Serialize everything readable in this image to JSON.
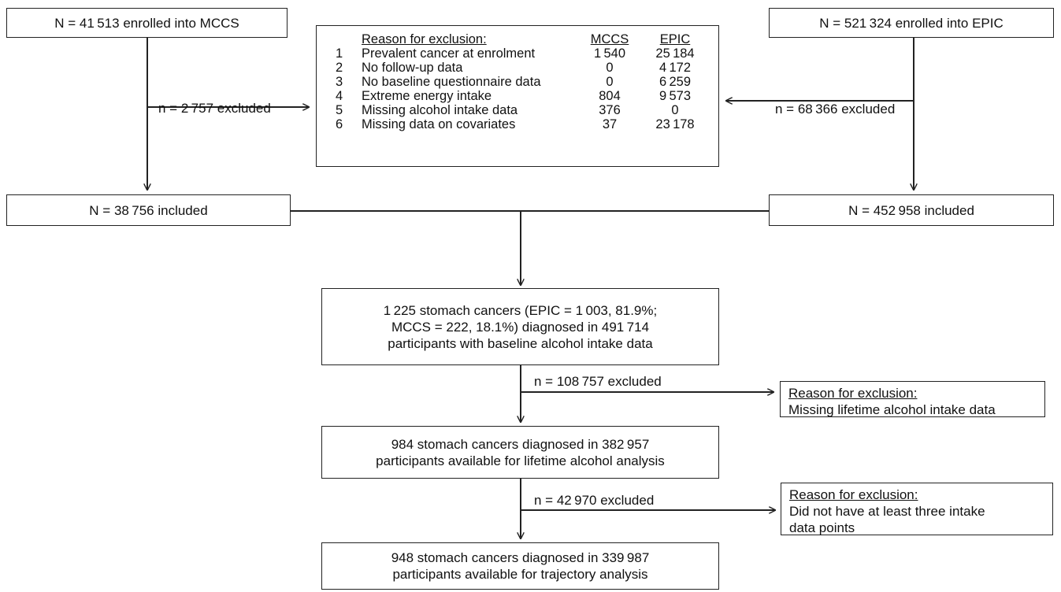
{
  "top_left": {
    "text": "N = 41 513 enrolled into MCCS"
  },
  "top_right": {
    "text": "N = 521 324 enrolled into EPIC"
  },
  "excl_left_label": "n = 2 757 excluded",
  "excl_right_label": "n = 68 366 excluded",
  "exclusion_table": {
    "header": {
      "reason": "Reason for exclusion:",
      "mccs": "MCCS",
      "epic": "EPIC"
    },
    "rows": [
      {
        "num": "1",
        "reason": "Prevalent cancer at enrolment",
        "mccs": "1 540",
        "epic": "25 184"
      },
      {
        "num": "2",
        "reason": "No follow-up data",
        "mccs": "0",
        "epic": "4 172"
      },
      {
        "num": "3",
        "reason": "No baseline questionnaire data",
        "mccs": "0",
        "epic": "6 259"
      },
      {
        "num": "4",
        "reason": "Extreme energy intake",
        "mccs": "804",
        "epic": "9 573"
      },
      {
        "num": "5",
        "reason": "Missing alcohol intake data",
        "mccs": "376",
        "epic": "0"
      },
      {
        "num": "6",
        "reason": "Missing data on covariates",
        "mccs": "37",
        "epic": "23 178"
      }
    ]
  },
  "included_left": "N = 38 756 included",
  "included_right": "N = 452 958 included",
  "combined_box": {
    "lines": [
      "1 225 stomach cancers (EPIC = 1 003, 81.9%;",
      "MCCS = 222, 18.1%) diagnosed in 491 714",
      "participants with baseline alcohol intake data"
    ]
  },
  "excl_lifetime_label": "n = 108 757 excluded",
  "reason_lifetime": {
    "title": "Reason for exclusion:",
    "lines": [
      "Missing lifetime alcohol intake data"
    ]
  },
  "lifetime_box": {
    "lines": [
      "984 stomach cancers diagnosed in 382 957",
      "participants available for lifetime alcohol analysis"
    ]
  },
  "excl_trajectory_label": "n = 42 970  excluded",
  "reason_trajectory": {
    "title": "Reason for exclusion:",
    "lines": [
      "Did not have at least three intake",
      "data points"
    ]
  },
  "trajectory_box": {
    "lines": [
      "948 stomach cancers diagnosed in 339 987",
      "participants available for trajectory analysis"
    ]
  }
}
